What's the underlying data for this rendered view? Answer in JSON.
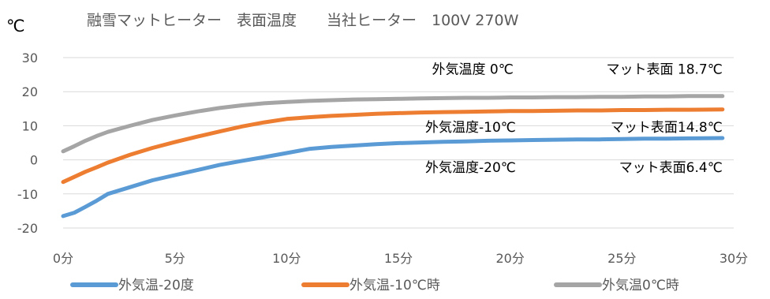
{
  "chart_data": {
    "type": "line",
    "title": "融雪マットヒーター　表面温度　　当社ヒーター　100V  270W",
    "ylabel": "℃",
    "xlabel": "",
    "xlim": [
      0,
      30
    ],
    "ylim": [
      -20,
      30
    ],
    "x_ticks": [
      0,
      5,
      10,
      15,
      20,
      25,
      30
    ],
    "x_tick_labels": [
      "0分",
      "5分",
      "10分",
      "15分",
      "20分",
      "25分",
      "30分"
    ],
    "y_ticks": [
      30,
      20,
      10,
      0,
      -10,
      -20
    ],
    "y_tick_labels": [
      "30",
      "20",
      "10",
      "0",
      "-10",
      "-20"
    ],
    "grid": true,
    "legend_position": "bottom",
    "series": [
      {
        "name": "外気温-20度",
        "color": "#5b9bd5",
        "x": [
          0,
          0.5,
          1,
          1.5,
          2,
          3,
          4,
          5,
          6,
          7,
          8,
          9,
          10,
          11,
          12,
          13,
          14,
          15,
          16,
          17,
          18,
          19,
          20,
          21,
          22,
          23,
          24,
          25,
          26,
          27,
          28,
          29.5
        ],
        "y": [
          -16.5,
          -15.5,
          -13.8,
          -12,
          -10,
          -8,
          -6,
          -4.5,
          -3,
          -1.5,
          -0.3,
          0.8,
          2,
          3.2,
          3.8,
          4.2,
          4.6,
          4.9,
          5.1,
          5.3,
          5.4,
          5.6,
          5.7,
          5.8,
          5.9,
          6,
          6,
          6.1,
          6.2,
          6.2,
          6.3,
          6.4
        ]
      },
      {
        "name": "外気温-10℃時",
        "color": "#ed7d31",
        "x": [
          0,
          0.5,
          1,
          1.5,
          2,
          3,
          4,
          5,
          6,
          7,
          8,
          9,
          10,
          11,
          12,
          13,
          14,
          15,
          16,
          17,
          18,
          19,
          20,
          21,
          22,
          23,
          24,
          25,
          26,
          27,
          28,
          29.5
        ],
        "y": [
          -6.5,
          -5,
          -3.5,
          -2.2,
          -0.8,
          1.5,
          3.5,
          5.2,
          6.8,
          8.3,
          9.8,
          11,
          12,
          12.5,
          12.9,
          13.2,
          13.5,
          13.7,
          13.9,
          14,
          14.1,
          14.2,
          14.3,
          14.3,
          14.4,
          14.5,
          14.5,
          14.6,
          14.6,
          14.7,
          14.7,
          14.8
        ]
      },
      {
        "name": "外気温0℃時",
        "color": "#a5a5a5",
        "x": [
          0,
          0.5,
          1,
          1.5,
          2,
          3,
          4,
          5,
          6,
          7,
          8,
          9,
          10,
          11,
          12,
          13,
          14,
          15,
          16,
          17,
          18,
          19,
          20,
          21,
          22,
          23,
          24,
          25,
          26,
          27,
          28,
          29.5
        ],
        "y": [
          2.5,
          4,
          5.6,
          7,
          8.2,
          10,
          11.7,
          13,
          14.2,
          15.2,
          16,
          16.6,
          17,
          17.3,
          17.5,
          17.7,
          17.8,
          17.9,
          18,
          18.1,
          18.2,
          18.2,
          18.3,
          18.3,
          18.4,
          18.4,
          18.5,
          18.5,
          18.6,
          18.6,
          18.7,
          18.7
        ]
      }
    ],
    "annotations": [
      {
        "text": "外気温度 0℃",
        "x": 16.5,
        "y": 25.2,
        "anchor": "start"
      },
      {
        "text": "マット表面 18.7℃",
        "x": 29.5,
        "y": 25.2,
        "anchor": "end"
      },
      {
        "text": "外気温度-10℃",
        "x": 16.2,
        "y": 8.2,
        "anchor": "start"
      },
      {
        "text": "マット表面14.8℃",
        "x": 29.5,
        "y": 8.2,
        "anchor": "end"
      },
      {
        "text": "外気温度-20℃",
        "x": 16.2,
        "y": -3.6,
        "anchor": "start"
      },
      {
        "text": "マット表面6.4℃",
        "x": 29.5,
        "y": -3.6,
        "anchor": "end"
      }
    ]
  }
}
